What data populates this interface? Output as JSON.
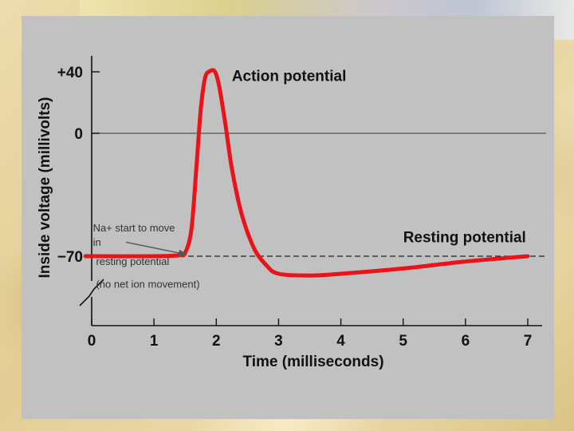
{
  "chart_data": {
    "type": "line",
    "xlabel": "Time (milliseconds)",
    "ylabel": "Inside voltage (millivolts)",
    "x_ticks": [
      "0",
      "1",
      "2",
      "3",
      "4",
      "5",
      "6",
      "7"
    ],
    "y_ticks": [
      {
        "value": 40,
        "label": "+40"
      },
      {
        "value": 0,
        "label": "0"
      },
      {
        "value": -70,
        "label": "−70"
      }
    ],
    "xlim": [
      0,
      7
    ],
    "axis_break": true,
    "reference_lines": [
      {
        "value": 0,
        "style": "solid",
        "color": "#555555"
      },
      {
        "value": -70,
        "style": "dashed",
        "color": "#222222"
      }
    ],
    "series": [
      {
        "color": "#e8141a",
        "points": [
          [
            -0.1,
            -70
          ],
          [
            1.0,
            -70
          ],
          [
            1.4,
            -69.5
          ],
          [
            1.5,
            -68
          ],
          [
            1.6,
            -55
          ],
          [
            1.68,
            -20
          ],
          [
            1.75,
            15
          ],
          [
            1.82,
            36
          ],
          [
            1.9,
            40.5
          ],
          [
            1.98,
            40
          ],
          [
            2.05,
            30
          ],
          [
            2.15,
            5
          ],
          [
            2.25,
            -20
          ],
          [
            2.4,
            -45
          ],
          [
            2.6,
            -65
          ],
          [
            2.8,
            -75
          ],
          [
            3.0,
            -80
          ],
          [
            3.5,
            -81
          ],
          [
            4.0,
            -80
          ],
          [
            5.0,
            -77
          ],
          [
            6.0,
            -73
          ],
          [
            7.0,
            -70
          ]
        ]
      }
    ],
    "annotations": [
      {
        "text": "Action potential",
        "x": 2.25,
        "y": 34
      },
      {
        "text": "Resting potential",
        "x": 5.0,
        "y": -62
      },
      {
        "text": "Na+ start to move",
        "x": 0.02,
        "y": -56
      },
      {
        "text": "in",
        "x": 0.02,
        "y": -64
      },
      {
        "text": "resting potential",
        "x": 0.07,
        "y": -75
      },
      {
        "text": "(no net ion movement)",
        "x": 0.07,
        "y": -88
      }
    ],
    "arrow": {
      "from": [
        0.55,
        -62
      ],
      "to": [
        1.52,
        -69
      ]
    }
  }
}
